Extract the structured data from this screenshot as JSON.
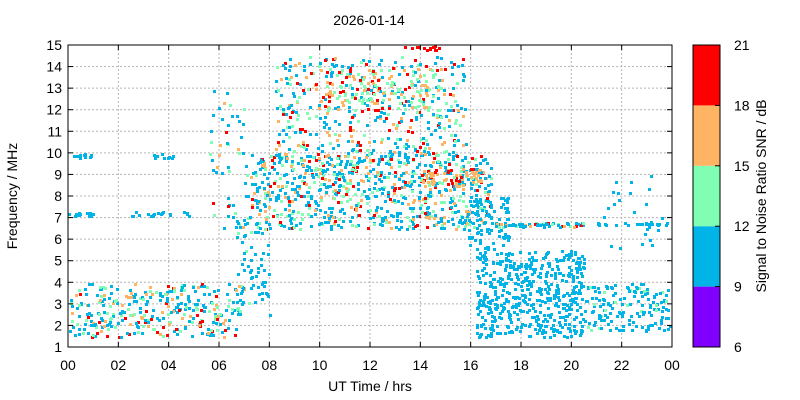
{
  "chart_data": {
    "type": "heatmap",
    "title": "2026-01-14",
    "xlabel": "UT Time / hrs",
    "ylabel": "Frequency / MHz",
    "xlim": [
      0,
      24
    ],
    "ylim": [
      1,
      15
    ],
    "x_ticks": [
      "00",
      "02",
      "04",
      "06",
      "08",
      "10",
      "12",
      "14",
      "16",
      "18",
      "20",
      "22",
      "00"
    ],
    "y_ticks": [
      "1",
      "2",
      "3",
      "4",
      "5",
      "6",
      "7",
      "8",
      "9",
      "10",
      "11",
      "12",
      "13",
      "14",
      "15"
    ],
    "grid": true,
    "colorbar": {
      "label": "Signal to Noise Ratio SNR / dB",
      "range": [
        6,
        21
      ],
      "ticks": [
        "6",
        "9",
        "12",
        "15",
        "18",
        "21"
      ],
      "bands": [
        {
          "from": 6,
          "to": 9,
          "color": "#7f00ff"
        },
        {
          "from": 9,
          "to": 12,
          "color": "#00b4e8"
        },
        {
          "from": 12,
          "to": 15,
          "color": "#80ffb4"
        },
        {
          "from": 15,
          "to": 18,
          "color": "#ffb464"
        },
        {
          "from": 18,
          "to": 21,
          "color": "#ff0000"
        }
      ]
    },
    "regions": [
      {
        "t": [
          0.0,
          7.0
        ],
        "f": [
          1.5,
          4.0
        ],
        "n": 320,
        "snr": [
          9,
          20
        ]
      },
      {
        "t": [
          0.0,
          0.9
        ],
        "f": [
          9.8,
          10.0
        ],
        "n": 12,
        "snr": [
          10,
          11
        ]
      },
      {
        "t": [
          0.0,
          1.2
        ],
        "f": [
          7.1,
          7.3
        ],
        "n": 12,
        "snr": [
          10,
          11
        ]
      },
      {
        "t": [
          2.5,
          4.8
        ],
        "f": [
          7.1,
          7.3
        ],
        "n": 22,
        "snr": [
          10,
          11
        ]
      },
      {
        "t": [
          3.2,
          4.2
        ],
        "f": [
          9.8,
          10.0
        ],
        "n": 10,
        "snr": [
          10,
          11
        ]
      },
      {
        "t": [
          5.6,
          7.0
        ],
        "f": [
          6.5,
          13.0
        ],
        "n": 45,
        "snr": [
          9,
          20
        ]
      },
      {
        "t": [
          6.6,
          8.0
        ],
        "f": [
          2.5,
          7.0
        ],
        "n": 70,
        "snr": [
          9,
          13
        ]
      },
      {
        "t": [
          7.0,
          16.8
        ],
        "f": [
          6.5,
          10.0
        ],
        "n": 780,
        "snr": [
          9,
          20
        ]
      },
      {
        "t": [
          8.2,
          15.8
        ],
        "f": [
          9.5,
          14.5
        ],
        "n": 460,
        "snr": [
          9,
          21
        ]
      },
      {
        "t": [
          10.0,
          14.8
        ],
        "f": [
          12.0,
          14.0
        ],
        "n": 130,
        "snr": [
          12,
          21
        ]
      },
      {
        "t": [
          13.2,
          14.8
        ],
        "f": [
          14.8,
          15.0
        ],
        "n": 14,
        "snr": [
          19,
          21
        ]
      },
      {
        "t": [
          14.0,
          16.5
        ],
        "f": [
          8.5,
          9.3
        ],
        "n": 60,
        "snr": [
          15,
          21
        ]
      },
      {
        "t": [
          15.8,
          17.5
        ],
        "f": [
          5.5,
          8.0
        ],
        "n": 90,
        "snr": [
          9,
          12
        ]
      },
      {
        "t": [
          16.2,
          20.5
        ],
        "f": [
          1.5,
          5.5
        ],
        "n": 520,
        "snr": [
          9,
          12
        ]
      },
      {
        "t": [
          16.8,
          20.5
        ],
        "f": [
          6.6,
          6.8
        ],
        "n": 60,
        "snr": [
          9,
          21
        ]
      },
      {
        "t": [
          20.5,
          24.0
        ],
        "f": [
          1.8,
          4.0
        ],
        "n": 160,
        "snr": [
          9,
          13
        ]
      },
      {
        "t": [
          21.0,
          24.0
        ],
        "f": [
          6.7,
          6.8
        ],
        "n": 22,
        "snr": [
          10,
          11
        ]
      },
      {
        "t": [
          21.2,
          24.0
        ],
        "f": [
          5.5,
          9.0
        ],
        "n": 28,
        "snr": [
          9,
          12
        ]
      }
    ]
  }
}
